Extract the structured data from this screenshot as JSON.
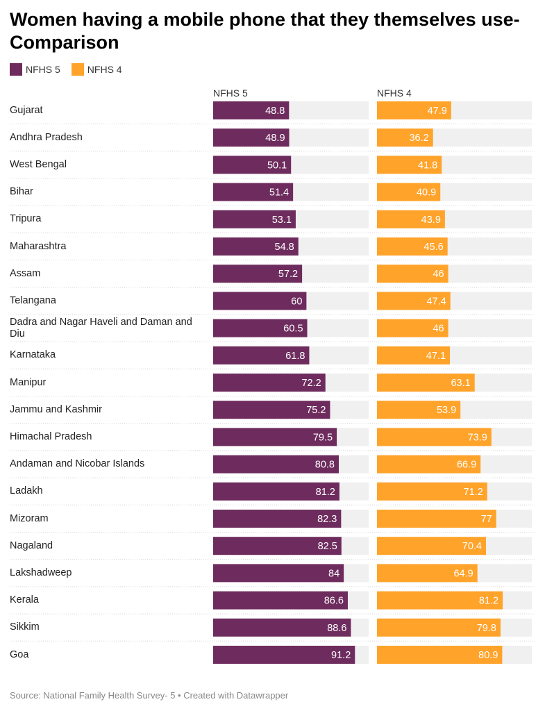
{
  "title": "Women having a mobile phone that they themselves use- Comparison",
  "legend": [
    {
      "name": "NFHS 5",
      "color": "#6e2c5e"
    },
    {
      "name": "NFHS 4",
      "color": "#ffa32a"
    }
  ],
  "source": "Source: National Family Health Survey- 5 • Created with Datawrapper",
  "chart_data": {
    "type": "bar",
    "xlim": [
      0,
      100
    ],
    "categories": [
      "Gujarat",
      "Andhra Pradesh",
      "West Bengal",
      "Bihar",
      "Tripura",
      "Maharashtra",
      "Assam",
      "Telangana",
      "Dadra and Nagar Haveli and Daman and Diu",
      "Karnataka",
      "Manipur",
      "Jammu and Kashmir",
      "Himachal Pradesh",
      "Andaman and Nicobar Islands",
      "Ladakh",
      "Mizoram",
      "Nagaland",
      "Lakshadweep",
      "Kerala",
      "Sikkim",
      "Goa"
    ],
    "series": [
      {
        "name": "NFHS 5",
        "color": "#6e2c5e",
        "values": [
          48.8,
          48.9,
          50.1,
          51.4,
          53.1,
          54.8,
          57.2,
          60,
          60.5,
          61.8,
          72.2,
          75.2,
          79.5,
          80.8,
          81.2,
          82.3,
          82.5,
          84,
          86.6,
          88.6,
          91.2
        ]
      },
      {
        "name": "NFHS 4",
        "color": "#ffa32a",
        "values": [
          47.9,
          36.2,
          41.8,
          40.9,
          43.9,
          45.6,
          46,
          47.4,
          46,
          47.1,
          63.1,
          53.9,
          73.9,
          66.9,
          71.2,
          77,
          70.4,
          64.9,
          81.2,
          79.8,
          80.9
        ]
      }
    ]
  }
}
